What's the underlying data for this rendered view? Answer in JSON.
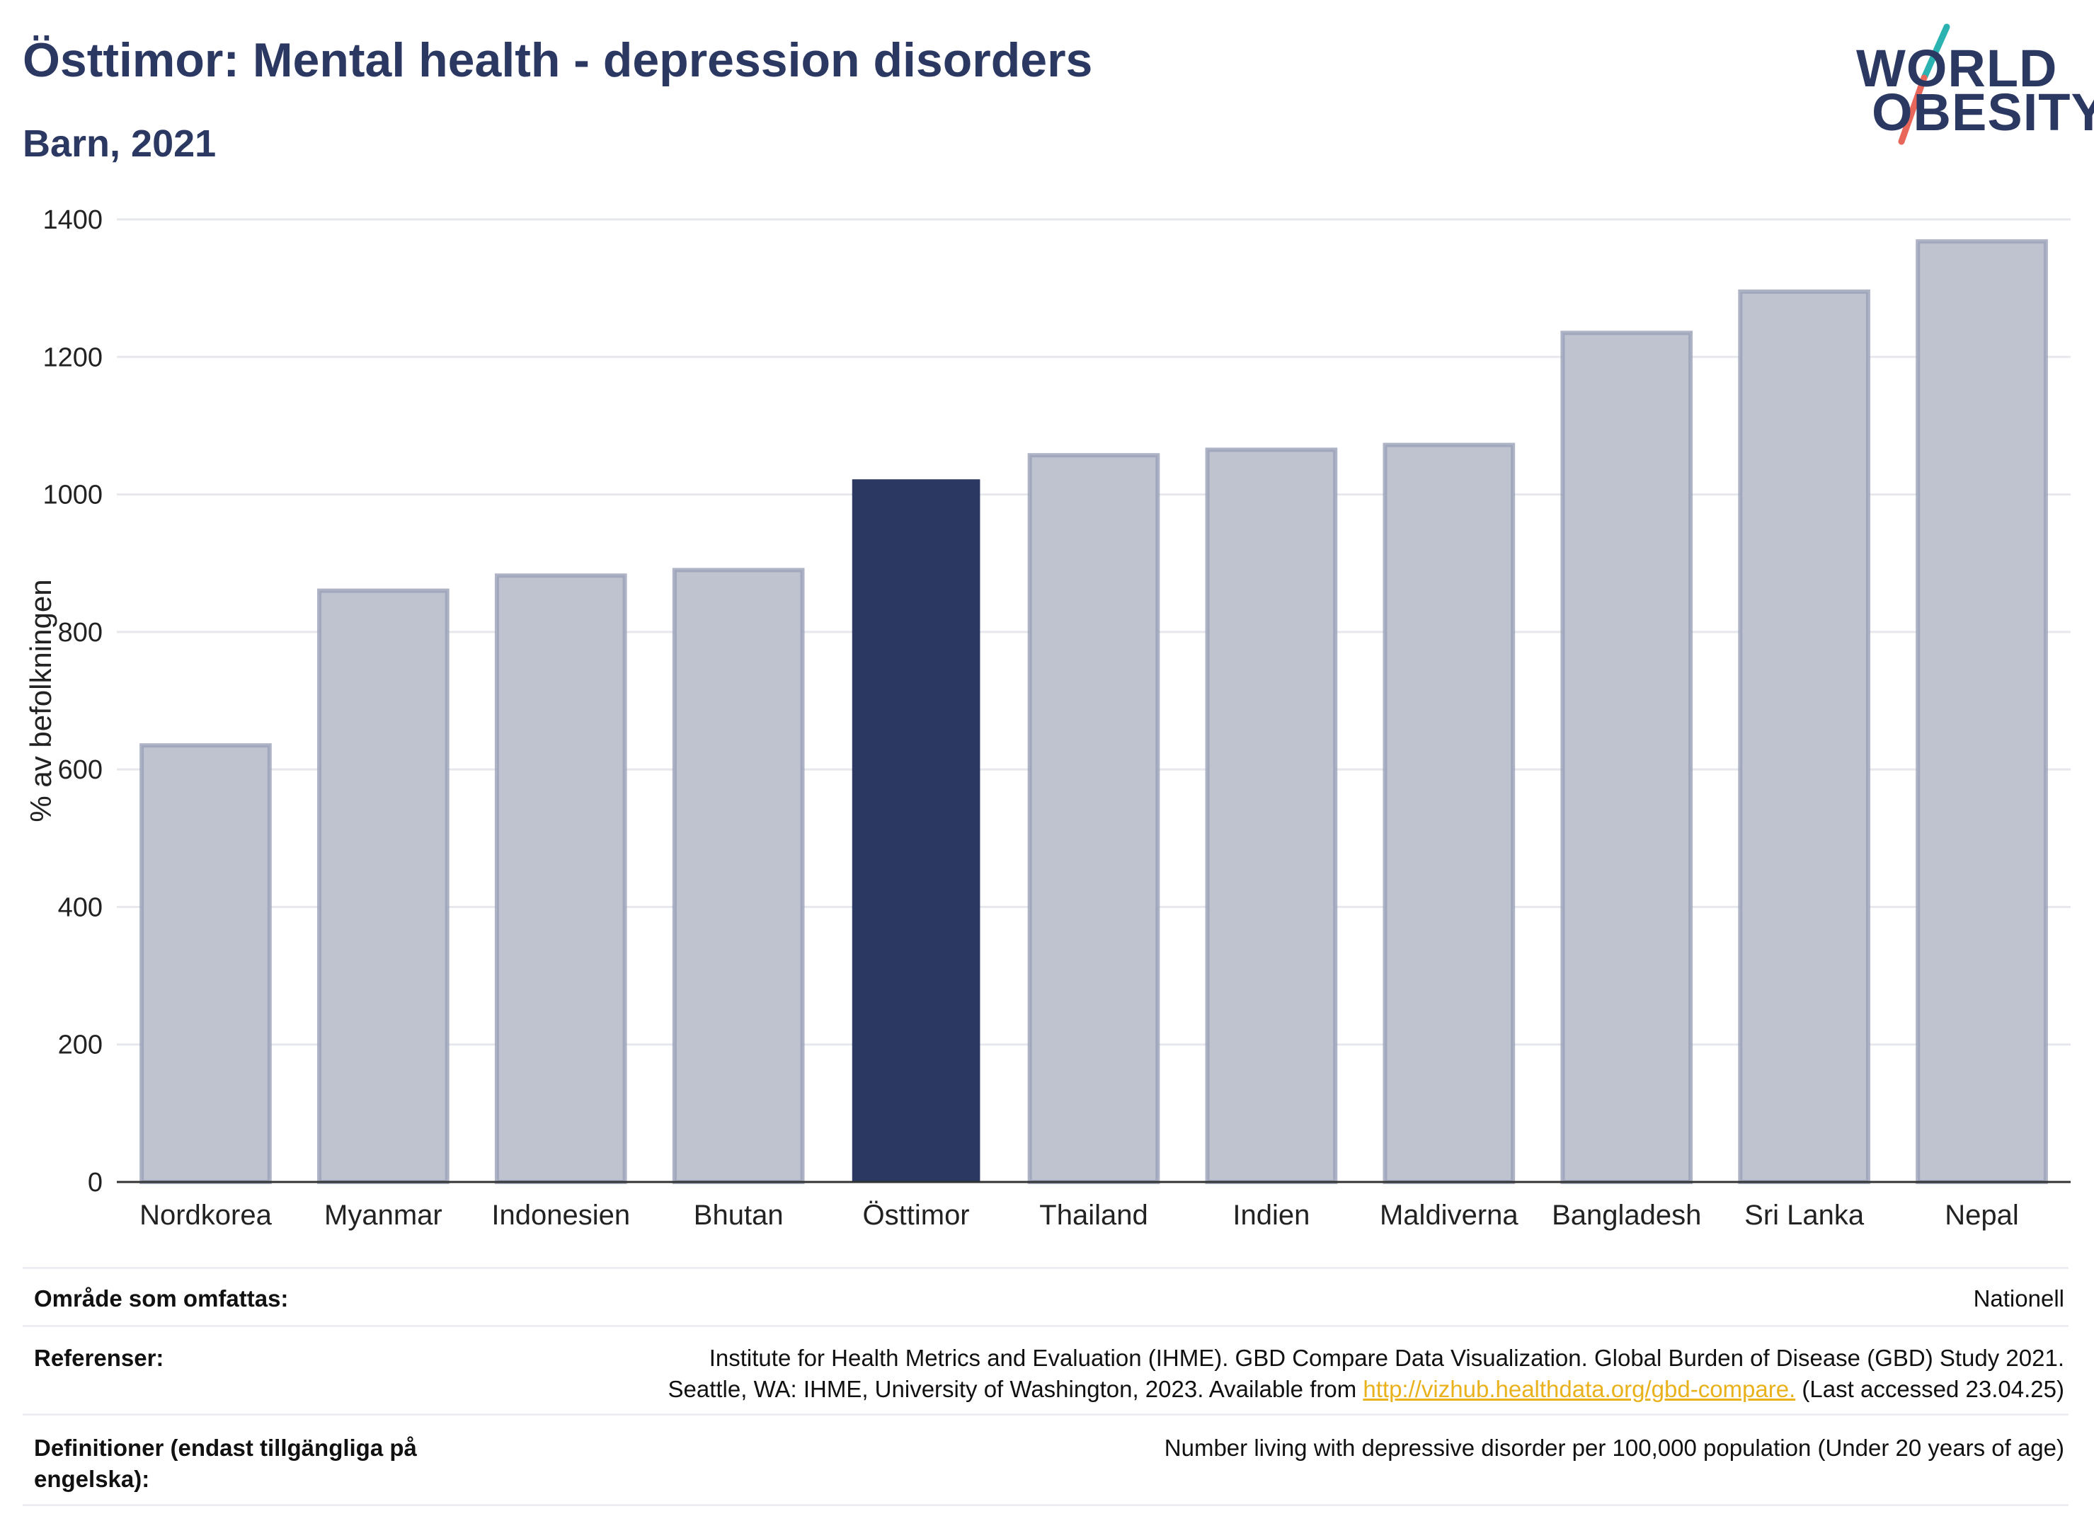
{
  "header": {
    "title": "Östtimor: Mental health - depression disorders",
    "subtitle": "Barn, 2021"
  },
  "logo": {
    "line1": "WORLD",
    "line2": "OBESITY",
    "colors": {
      "text": "#2b3862",
      "slash_top": "#2ab3b1",
      "slash_bottom": "#e8665a"
    }
  },
  "chart_data": {
    "type": "bar",
    "categories": [
      "Nordkorea",
      "Myanmar",
      "Indonesien",
      "Bhutan",
      "Östtimor",
      "Thailand",
      "Indien",
      "Maldiverna",
      "Bangladesh",
      "Sri Lanka",
      "Nepal"
    ],
    "values": [
      635,
      860,
      882,
      890,
      1022,
      1057,
      1065,
      1072,
      1235,
      1295,
      1368
    ],
    "highlight": "Östtimor",
    "ylabel": "% av befolkningen",
    "xlabel": "",
    "ylim": [
      0,
      1400
    ],
    "yticks": [
      0,
      200,
      400,
      600,
      800,
      1000,
      1200,
      1400
    ],
    "grid": true,
    "colors": {
      "bar": "#bfc3cf",
      "bar_edge": "#9aa1b8",
      "highlight": "#2b3862",
      "grid": "#e6e8ee",
      "axis": "#333333"
    }
  },
  "meta": {
    "rows": [
      {
        "key": "Område som omfattas:",
        "value_lines": [
          "Nationell"
        ]
      },
      {
        "key": "Referenser:",
        "value_lines": [
          "Institute for Health Metrics and Evaluation (IHME). GBD Compare Data Visualization. Global Burden of Disease (GBD) Study 2021.",
          "Seattle, WA: IHME, University of Washington, 2023. Available from"
        ],
        "link": "http://vizhub.healthdata.org/gbd-compare.",
        "after_link": " (Last accessed 23.04.25)"
      },
      {
        "key": "Definitioner (endast tillgängliga på engelska):",
        "value_lines": [
          "Number living with depressive disorder per 100,000 population (Under 20 years of age)"
        ]
      }
    ]
  }
}
